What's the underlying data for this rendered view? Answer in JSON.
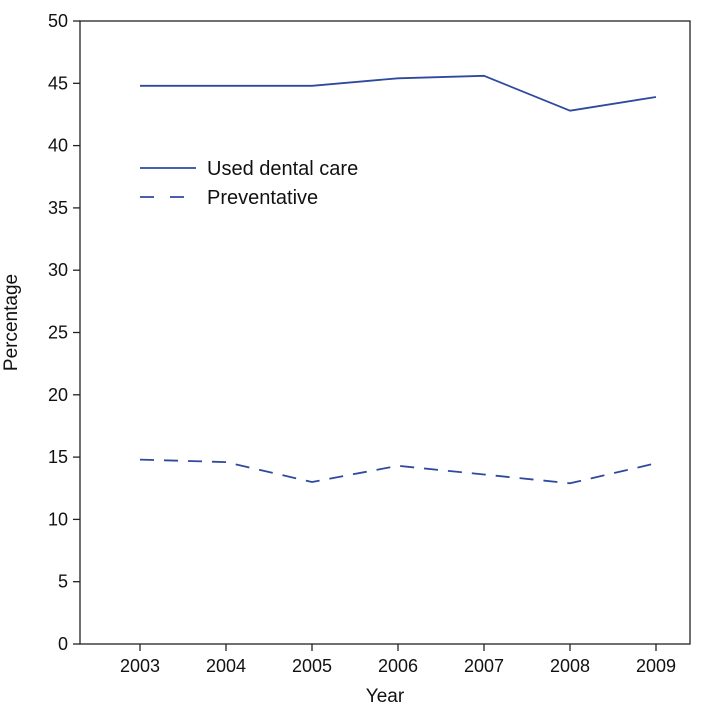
{
  "chart_data": {
    "type": "line",
    "title": "",
    "xlabel": "Year",
    "ylabel": "Percentage",
    "x": [
      "2003",
      "2004",
      "2005",
      "2006",
      "2007",
      "2008",
      "2009"
    ],
    "ylim": [
      0,
      50
    ],
    "yticks": [
      0,
      5,
      10,
      15,
      20,
      25,
      30,
      35,
      40,
      45,
      50
    ],
    "grid": false,
    "legend_position": "upper-left",
    "series": [
      {
        "name": "Used dental care",
        "style": "solid",
        "color": "#2e4a9e",
        "values": [
          44.8,
          44.8,
          44.8,
          45.4,
          45.6,
          42.8,
          43.9
        ]
      },
      {
        "name": "Preventative",
        "style": "dashed",
        "color": "#2e4a9e",
        "values": [
          14.8,
          14.6,
          13.0,
          14.3,
          13.6,
          12.9,
          14.5
        ]
      }
    ]
  }
}
